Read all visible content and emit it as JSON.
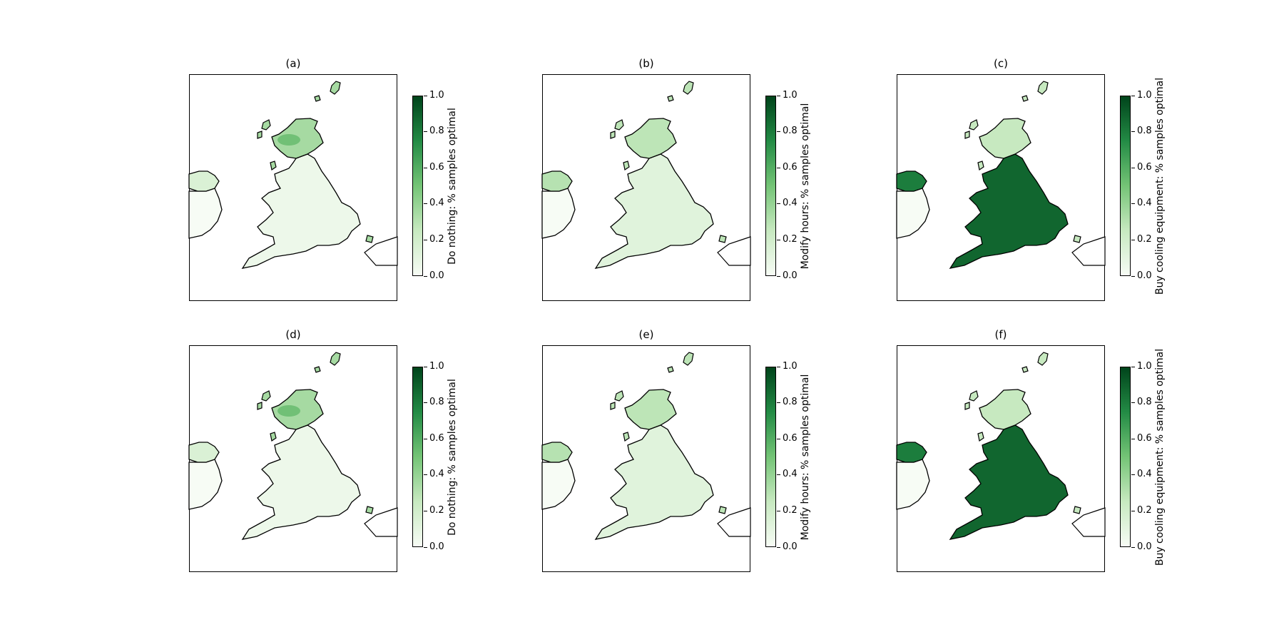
{
  "figure": {
    "panels": [
      {
        "id": "a",
        "title": "(a)",
        "colorbar_label": "Do nothing: % samples optimal",
        "shading": "do_nothing_1"
      },
      {
        "id": "b",
        "title": "(b)",
        "colorbar_label": "Modify hours: % samples optimal",
        "shading": "modify_hours_1"
      },
      {
        "id": "c",
        "title": "(c)",
        "colorbar_label": "Buy cooling equipment: % samples optimal",
        "shading": "buy_cooling_1"
      },
      {
        "id": "d",
        "title": "(d)",
        "colorbar_label": "Do nothing: % samples optimal",
        "shading": "do_nothing_2"
      },
      {
        "id": "e",
        "title": "(e)",
        "colorbar_label": "Modify hours: % samples optimal",
        "shading": "modify_hours_2"
      },
      {
        "id": "f",
        "title": "(f)",
        "colorbar_label": "Buy cooling equipment: % samples optimal",
        "shading": "buy_cooling_2"
      }
    ],
    "colorbar_ticks": [
      "0.0",
      "0.2",
      "0.4",
      "0.6",
      "0.8",
      "1.0"
    ],
    "colormap": {
      "low": "#f7fcf5",
      "mid": "#74c476",
      "high": "#00441b"
    }
  }
}
